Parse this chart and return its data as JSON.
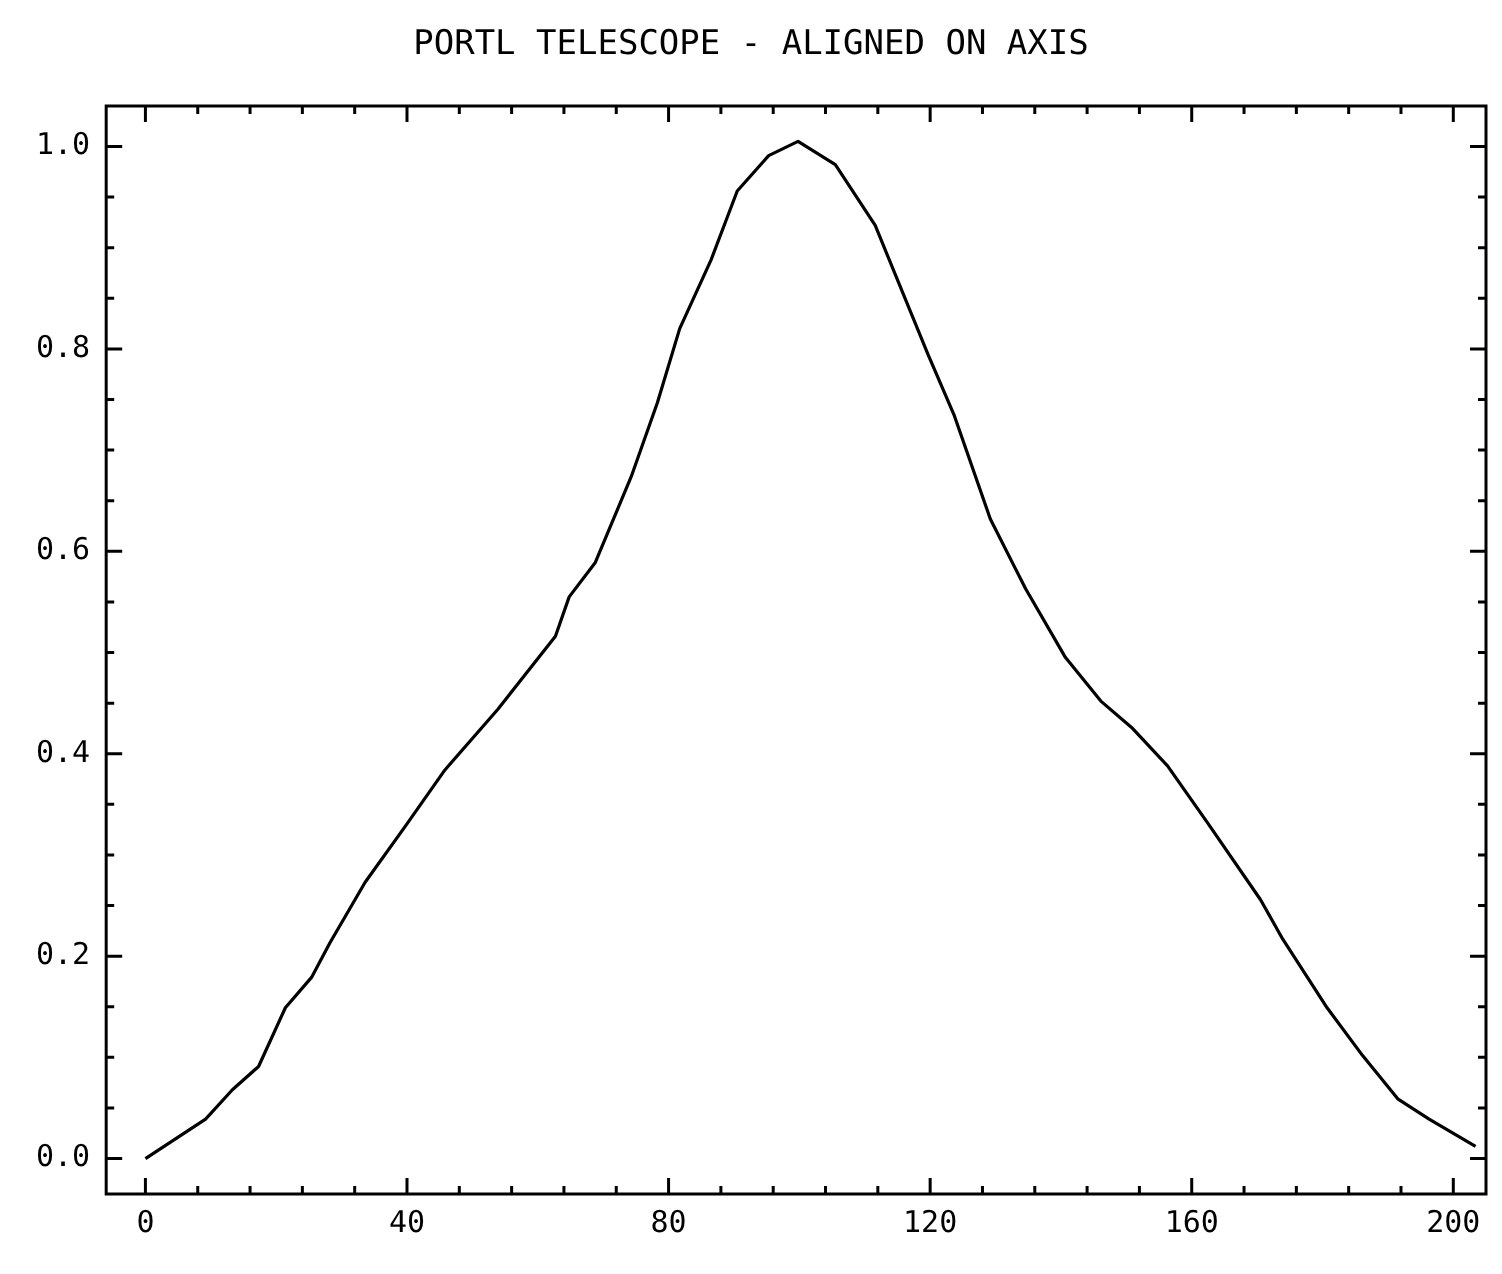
{
  "chart_data": {
    "type": "line",
    "title": "PORTL TELESCOPE - ALIGNED ON AXIS",
    "xlim": [
      -6,
      205
    ],
    "ylim": [
      -0.035,
      1.04
    ],
    "xticks": [
      0,
      {
        "value": 8,
        "label": null
      },
      {
        "value": 16,
        "label": null
      },
      {
        "value": 24,
        "label": null
      },
      {
        "value": 32,
        "label": null
      },
      40,
      {
        "value": 48,
        "label": null
      },
      {
        "value": 56,
        "label": null
      },
      {
        "value": 64,
        "label": null
      },
      {
        "value": 72,
        "label": null
      },
      80,
      {
        "value": 88,
        "label": null
      },
      {
        "value": 96,
        "label": null
      },
      {
        "value": 104,
        "label": null
      },
      {
        "value": 112,
        "label": null
      },
      120,
      {
        "value": 128,
        "label": null
      },
      {
        "value": 136,
        "label": null
      },
      {
        "value": 144,
        "label": null
      },
      {
        "value": 152,
        "label": null
      },
      160,
      {
        "value": 168,
        "label": null
      },
      {
        "value": 176,
        "label": null
      },
      {
        "value": 184,
        "label": null
      },
      {
        "value": 192,
        "label": null
      },
      200
    ],
    "yticks": [
      {
        "value": 0,
        "label": "0.0"
      },
      {
        "value": 0.05,
        "label": null
      },
      {
        "value": 0.1,
        "label": null
      },
      {
        "value": 0.15,
        "label": null
      },
      {
        "value": 0.2,
        "label": "0.2"
      },
      {
        "value": 0.25,
        "label": null
      },
      {
        "value": 0.3,
        "label": null
      },
      {
        "value": 0.35,
        "label": null
      },
      {
        "value": 0.4,
        "label": "0.4"
      },
      {
        "value": 0.45,
        "label": null
      },
      {
        "value": 0.5,
        "label": null
      },
      {
        "value": 0.55,
        "label": null
      },
      {
        "value": 0.6,
        "label": "0.6"
      },
      {
        "value": 0.65,
        "label": null
      },
      {
        "value": 0.7,
        "label": null
      },
      {
        "value": 0.75,
        "label": null
      },
      {
        "value": 0.8,
        "label": "0.8"
      },
      {
        "value": 0.85,
        "label": null
      },
      {
        "value": 0.9,
        "label": null
      },
      {
        "value": 0.95,
        "label": null
      },
      {
        "value": 1.0,
        "label": "1.0"
      }
    ],
    "grid": false,
    "legend": false,
    "marker": "none",
    "line_style": "solid",
    "series": [
      {
        "color": "#000000",
        "x": [
          0,
          9.2,
          13.3,
          17.3,
          21.4,
          25.4,
          28.2,
          33.6,
          39.7,
          45.8,
          53.9,
          62.7,
          64.8,
          68.8,
          74.3,
          78.3,
          81.7,
          86.5,
          90.5,
          95.3,
          99.8,
          105.5,
          111.6,
          119.7,
          123.7,
          129.2,
          134.6,
          140.7,
          146.1,
          150.8,
          156.3,
          162.4,
          170.5,
          173.9,
          180.7,
          186.1,
          191.5,
          196.3,
          203.4
        ],
        "values": [
          0.0,
          0.039,
          0.068,
          0.091,
          0.149,
          0.179,
          0.213,
          0.273,
          0.328,
          0.384,
          0.444,
          0.516,
          0.555,
          0.589,
          0.674,
          0.747,
          0.82,
          0.888,
          0.956,
          0.991,
          1.005,
          0.982,
          0.922,
          0.794,
          0.734,
          0.632,
          0.563,
          0.495,
          0.452,
          0.426,
          0.388,
          0.332,
          0.256,
          0.217,
          0.149,
          0.102,
          0.059,
          0.039,
          0.012
        ]
      }
    ]
  }
}
